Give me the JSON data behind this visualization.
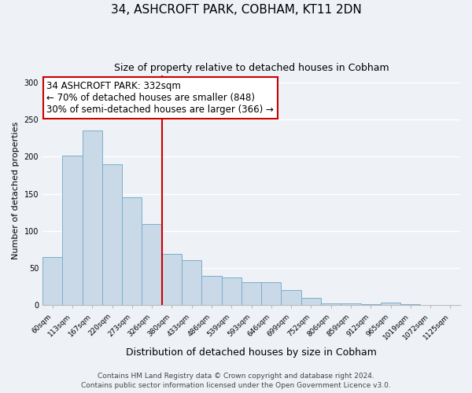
{
  "title": "34, ASHCROFT PARK, COBHAM, KT11 2DN",
  "subtitle": "Size of property relative to detached houses in Cobham",
  "xlabel": "Distribution of detached houses by size in Cobham",
  "ylabel": "Number of detached properties",
  "bar_labels": [
    "60sqm",
    "113sqm",
    "167sqm",
    "220sqm",
    "273sqm",
    "326sqm",
    "380sqm",
    "433sqm",
    "486sqm",
    "539sqm",
    "593sqm",
    "646sqm",
    "699sqm",
    "752sqm",
    "806sqm",
    "859sqm",
    "912sqm",
    "965sqm",
    "1019sqm",
    "1072sqm",
    "1125sqm"
  ],
  "bar_values": [
    65,
    202,
    235,
    190,
    145,
    109,
    69,
    61,
    40,
    38,
    31,
    31,
    21,
    10,
    3,
    3,
    2,
    4,
    2,
    1,
    1
  ],
  "bar_color": "#c9d9e8",
  "bar_edge_color": "#7aafc8",
  "vline_x": 5.5,
  "vline_color": "#cc0000",
  "annotation_box_text": "34 ASHCROFT PARK: 332sqm\n← 70% of detached houses are smaller (848)\n30% of semi-detached houses are larger (366) →",
  "annotation_box_color": "#ffffff",
  "annotation_box_edge_color": "#cc0000",
  "ylim": [
    0,
    310
  ],
  "yticks": [
    0,
    50,
    100,
    150,
    200,
    250,
    300
  ],
  "footer_line1": "Contains HM Land Registry data © Crown copyright and database right 2024.",
  "footer_line2": "Contains public sector information licensed under the Open Government Licence v3.0.",
  "background_color": "#eef2f7",
  "grid_color": "#ffffff",
  "title_fontsize": 11,
  "subtitle_fontsize": 9,
  "ylabel_fontsize": 8,
  "xlabel_fontsize": 9,
  "tick_fontsize": 6.5,
  "annotation_fontsize": 8.5,
  "footer_fontsize": 6.5
}
